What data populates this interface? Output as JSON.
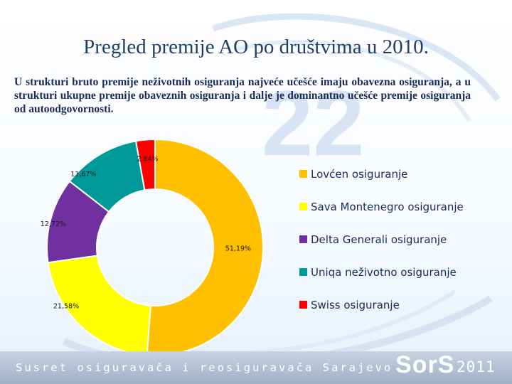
{
  "slide": {
    "title": "Pregled premije AO po društvima u 2010.",
    "intro": "U strukturi bruto premije neživotnih osiguranja najveće učešće imaju obavezna osiguranja, a u strukturi ukupne premije obaveznih osiguranja i dalje je dominantno učešće premije osiguranja od autoodgovornosti."
  },
  "footer": {
    "text": "Susret osiguravača i reosiguravača Sarajevo",
    "logo": "SorS",
    "year": "2011",
    "watermark": "22"
  },
  "chart_data": {
    "type": "pie",
    "variant": "donut",
    "legend_position": "right",
    "slices": [
      {
        "name": "Lovćen osiguranje",
        "value": 51.19,
        "label": "51,19%",
        "color": "#FFC000"
      },
      {
        "name": "Sava Montenegro osiguranje",
        "value": 21.58,
        "label": "21,58%",
        "color": "#FFFF00"
      },
      {
        "name": "Delta Generali osiguranje",
        "value": 12.72,
        "label": "12,72%",
        "color": "#7030A0"
      },
      {
        "name": "Uniqa neživotno osiguranje",
        "value": 11.67,
        "label": "11,67%",
        "color": "#009999"
      },
      {
        "name": "Swiss osiguranje",
        "value": 2.84,
        "label": "2,84%",
        "color": "#FF0000"
      }
    ]
  }
}
